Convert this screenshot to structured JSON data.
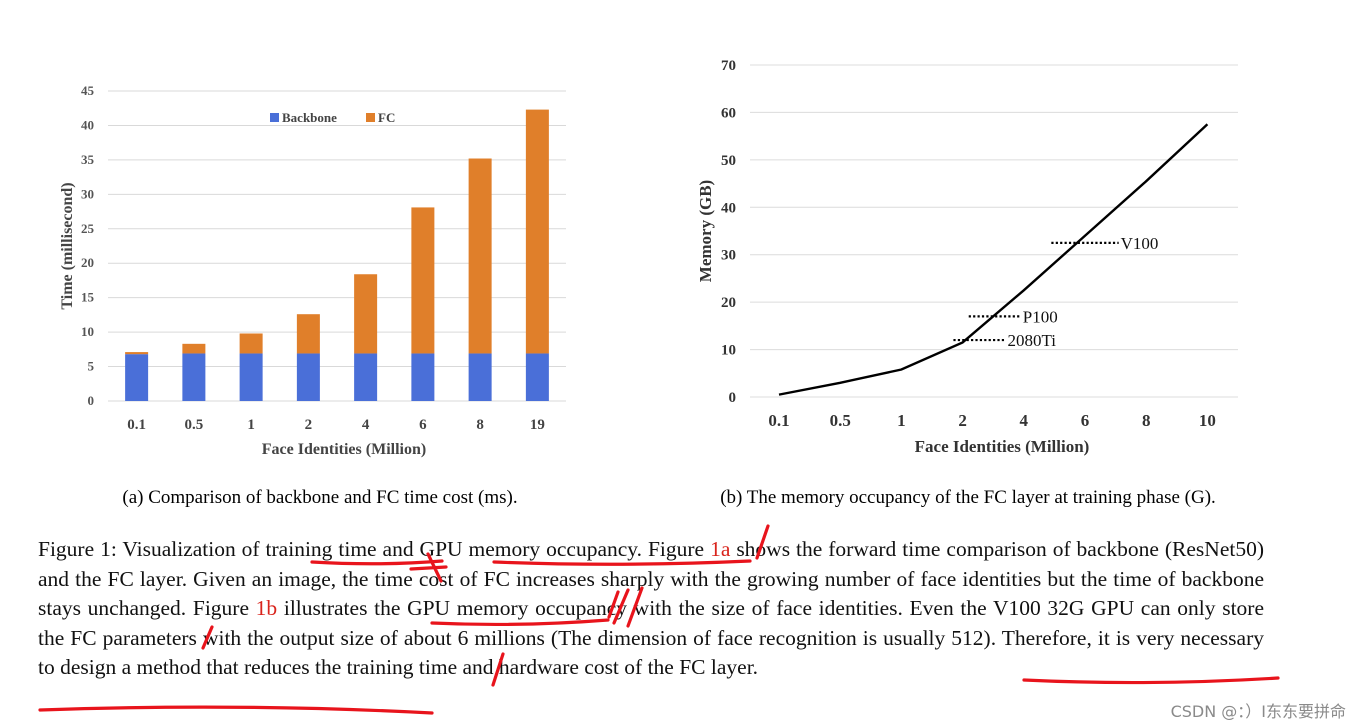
{
  "chart_data": [
    {
      "type": "bar",
      "stacked": true,
      "title": "",
      "xlabel": "Face Identities (Million)",
      "ylabel": "Time (millisecond)",
      "ylim": [
        0,
        45
      ],
      "yticks": [
        0,
        5,
        10,
        15,
        20,
        25,
        30,
        35,
        40,
        45
      ],
      "categories": [
        "0.1",
        "0.5",
        "1",
        "2",
        "4",
        "6",
        "8",
        "19"
      ],
      "series": [
        {
          "name": "Backbone",
          "color": "#4a6fd8",
          "values": [
            6.8,
            6.9,
            6.9,
            6.9,
            6.9,
            6.9,
            6.9,
            6.9
          ]
        },
        {
          "name": "FC",
          "color": "#e07f2a",
          "values": [
            0.3,
            1.4,
            2.9,
            5.7,
            11.5,
            21.2,
            28.3,
            35.4
          ]
        }
      ],
      "grid": true,
      "legend": "top-center"
    },
    {
      "type": "line",
      "title": "",
      "xlabel": "Face Identities (Million)",
      "ylabel": "Memory (GB)",
      "ylim": [
        0,
        70
      ],
      "yticks": [
        0,
        10,
        20,
        30,
        40,
        50,
        60,
        70
      ],
      "categories": [
        "0.1",
        "0.5",
        "1",
        "2",
        "4",
        "6",
        "8",
        "10"
      ],
      "series": [
        {
          "name": "Memory",
          "color": "#000000",
          "values": [
            0.5,
            3.0,
            5.8,
            11.5,
            22.5,
            34.0,
            45.5,
            57.5
          ]
        }
      ],
      "annotations": [
        {
          "label": "V100",
          "value": 32.5,
          "from_index": 4.45,
          "to_index": 5.55
        },
        {
          "label": "P100",
          "value": 17,
          "from_index": 3.1,
          "to_index": 3.95
        },
        {
          "label": "2080Ti",
          "value": 12,
          "from_index": 2.85,
          "to_index": 3.7
        }
      ],
      "grid": true
    }
  ],
  "captions": {
    "a": "(a) Comparison of backbone and FC time cost (ms).",
    "b": "(b) The memory occupancy of the FC layer at training phase (G)."
  },
  "body_text": {
    "p1": "Figure 1:  Visualization of training time and GPU memory occupancy.  Figure ",
    "ref1": "1a",
    "p2": " shows the forward time comparison of backbone (ResNet50) and the FC layer.  Given an image, the time cost of FC increases sharply with the growing number of face identities but the time of backbone stays unchanged.  Figure ",
    "ref2": "1b",
    "p3": " illustrates the GPU memory occupancy with the size of face identities.  Even the V100 32G GPU can only store the FC parameters with the output size of about 6 millions (The dimension of face recognition is usually 512).  Therefore, it is very necessary to design a method that reduces the training time and hardware cost of the FC layer."
  },
  "watermark": "CSDN @：）I东东要拼命",
  "annotation_color": "#e8141c"
}
